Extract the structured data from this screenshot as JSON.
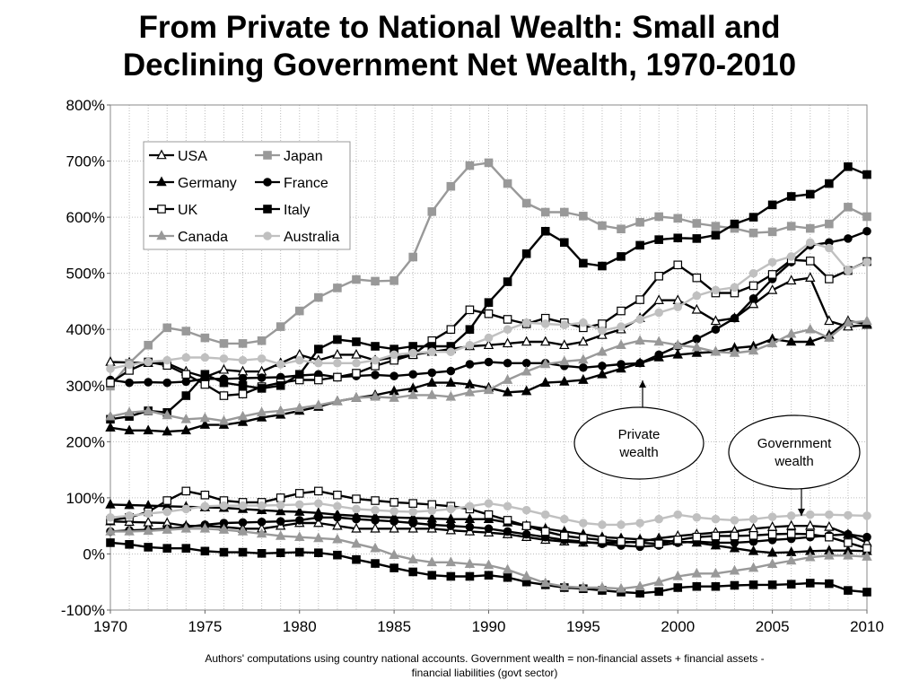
{
  "title_line1": "From Private to National Wealth: Small and",
  "title_line2": "Declining Government Net Wealth, 1970-2010",
  "footnote_line1": "Authors' computations using country national accounts. Government wealth = non-financial assets + financial assets -",
  "footnote_line2": "financial liabilities (govt sector)",
  "annotations": {
    "private": [
      "Private",
      "wealth"
    ],
    "government": [
      "Government",
      "wealth"
    ]
  },
  "chart_data": {
    "type": "line",
    "x": [
      1970,
      1971,
      1972,
      1973,
      1974,
      1975,
      1976,
      1977,
      1978,
      1979,
      1980,
      1981,
      1982,
      1983,
      1984,
      1985,
      1986,
      1987,
      1988,
      1989,
      1990,
      1991,
      1992,
      1993,
      1994,
      1995,
      1996,
      1997,
      1998,
      1999,
      2000,
      2001,
      2002,
      2003,
      2004,
      2005,
      2006,
      2007,
      2008,
      2009,
      2010
    ],
    "xlim": [
      1970,
      2010
    ],
    "ylim": [
      -100,
      800
    ],
    "xticks": [
      1970,
      1975,
      1980,
      1985,
      1990,
      1995,
      2000,
      2005,
      2010
    ],
    "yticks": [
      -100,
      0,
      100,
      200,
      300,
      400,
      500,
      600,
      700,
      800
    ],
    "ytick_labels": [
      "-100%",
      "0%",
      "100%",
      "200%",
      "300%",
      "400%",
      "500%",
      "600%",
      "700%",
      "800%"
    ],
    "grid": true,
    "legend_position": "top-left",
    "series": [
      {
        "name": "USA",
        "marker": "triangle-open",
        "color": "#000000",
        "private": [
          342,
          341,
          340,
          340,
          325,
          315,
          328,
          325,
          325,
          340,
          355,
          345,
          355,
          355,
          345,
          350,
          355,
          360,
          365,
          370,
          372,
          375,
          378,
          378,
          372,
          378,
          390,
          400,
          420,
          452,
          452,
          435,
          415,
          420,
          445,
          470,
          487,
          492,
          415,
          405,
          408
        ],
        "government": [
          58,
          57,
          56,
          55,
          50,
          50,
          48,
          45,
          45,
          50,
          55,
          55,
          50,
          45,
          45,
          45,
          45,
          45,
          42,
          40,
          38,
          35,
          30,
          25,
          22,
          20,
          20,
          20,
          22,
          28,
          32,
          35,
          38,
          40,
          45,
          48,
          50,
          50,
          48,
          35,
          20
        ]
      },
      {
        "name": "Japan",
        "marker": "square",
        "color": "#999999",
        "private": [
          299,
          340,
          372,
          403,
          397,
          385,
          375,
          375,
          380,
          405,
          433,
          457,
          474,
          489,
          486,
          487,
          529,
          610,
          655,
          692,
          697,
          660,
          625,
          609,
          609,
          602,
          585,
          579,
          591,
          601,
          598,
          589,
          584,
          580,
          572,
          574,
          584,
          580,
          588,
          618,
          601
        ]
      },
      {
        "name": "Germany",
        "marker": "triangle",
        "color": "#000000",
        "private": [
          225,
          220,
          220,
          218,
          220,
          230,
          230,
          235,
          243,
          248,
          255,
          262,
          272,
          278,
          283,
          290,
          295,
          305,
          305,
          302,
          296,
          288,
          290,
          305,
          307,
          310,
          320,
          330,
          340,
          350,
          355,
          358,
          360,
          367,
          370,
          383,
          378,
          378,
          390,
          415,
          410
        ],
        "government": [
          88,
          87,
          86,
          85,
          84,
          83,
          82,
          80,
          78,
          76,
          75,
          73,
          70,
          68,
          66,
          65,
          64,
          63,
          62,
          62,
          62,
          56,
          50,
          45,
          40,
          35,
          30,
          28,
          26,
          24,
          22,
          20,
          15,
          10,
          5,
          2,
          3,
          5,
          6,
          6,
          5
        ]
      },
      {
        "name": "France",
        "marker": "circle",
        "color": "#000000",
        "private": [
          310,
          305,
          306,
          305,
          307,
          312,
          312,
          313,
          314,
          315,
          318,
          320,
          315,
          317,
          319,
          317,
          320,
          323,
          326,
          338,
          342,
          340,
          340,
          340,
          335,
          332,
          335,
          338,
          340,
          355,
          370,
          383,
          400,
          420,
          455,
          490,
          520,
          550,
          555,
          562,
          575
        ],
        "government": [
          40,
          42,
          43,
          45,
          48,
          52,
          55,
          56,
          57,
          58,
          60,
          65,
          65,
          62,
          60,
          58,
          55,
          52,
          50,
          48,
          45,
          40,
          35,
          30,
          25,
          22,
          18,
          15,
          13,
          15,
          20,
          22,
          20,
          20,
          22,
          25,
          27,
          30,
          33,
          35,
          30
        ]
      },
      {
        "name": "UK",
        "marker": "square-open",
        "color": "#000000",
        "private": [
          305,
          327,
          342,
          336,
          320,
          302,
          282,
          285,
          298,
          305,
          310,
          310,
          315,
          322,
          335,
          345,
          355,
          380,
          400,
          435,
          428,
          418,
          410,
          420,
          412,
          403,
          410,
          433,
          453,
          495,
          515,
          492,
          465,
          465,
          478,
          498,
          524,
          522,
          490,
          505,
          521
        ],
        "government": [
          60,
          65,
          75,
          95,
          112,
          105,
          95,
          92,
          92,
          100,
          108,
          112,
          105,
          98,
          95,
          92,
          90,
          88,
          85,
          80,
          70,
          60,
          50,
          40,
          32,
          28,
          25,
          22,
          20,
          18,
          25,
          30,
          32,
          32,
          33,
          35,
          36,
          35,
          30,
          20,
          10
        ]
      },
      {
        "name": "Italy",
        "marker": "square",
        "color": "#000000",
        "private": [
          240,
          245,
          255,
          252,
          282,
          320,
          305,
          300,
          295,
          300,
          320,
          365,
          382,
          378,
          370,
          365,
          370,
          370,
          370,
          400,
          448,
          485,
          535,
          575,
          555,
          518,
          513,
          530,
          550,
          560,
          563,
          562,
          568,
          588,
          600,
          622,
          637,
          641,
          660,
          690,
          676
        ],
        "government": [
          20,
          17,
          12,
          10,
          10,
          5,
          3,
          3,
          1,
          2,
          3,
          2,
          -2,
          -10,
          -17,
          -25,
          -32,
          -38,
          -40,
          -40,
          -38,
          -42,
          -50,
          -55,
          -60,
          -62,
          -65,
          -68,
          -70,
          -67,
          -60,
          -58,
          -58,
          -56,
          -55,
          -55,
          -54,
          -52,
          -53,
          -65,
          -68
        ]
      },
      {
        "name": "Canada",
        "marker": "triangle",
        "color": "#999999",
        "private": [
          245,
          252,
          255,
          247,
          240,
          242,
          237,
          245,
          252,
          255,
          260,
          265,
          272,
          278,
          280,
          278,
          283,
          283,
          280,
          288,
          292,
          310,
          325,
          338,
          343,
          346,
          360,
          372,
          380,
          378,
          372,
          368,
          360,
          358,
          362,
          375,
          392,
          400,
          385,
          412,
          415
        ],
        "government": [
          40,
          40,
          41,
          43,
          45,
          45,
          43,
          40,
          36,
          32,
          30,
          28,
          26,
          18,
          10,
          -2,
          -10,
          -15,
          -15,
          -18,
          -20,
          -28,
          -40,
          -52,
          -58,
          -60,
          -60,
          -62,
          -58,
          -50,
          -40,
          -35,
          -35,
          -30,
          -25,
          -18,
          -12,
          -6,
          -3,
          -3,
          -5
        ]
      },
      {
        "name": "Australia",
        "marker": "circle",
        "color": "#c0c0c0",
        "private": [
          330,
          337,
          342,
          345,
          350,
          350,
          348,
          345,
          348,
          338,
          345,
          340,
          340,
          340,
          345,
          355,
          358,
          360,
          360,
          372,
          385,
          400,
          412,
          410,
          408,
          412,
          398,
          405,
          418,
          430,
          440,
          460,
          470,
          475,
          500,
          520,
          530,
          555,
          545,
          505,
          520
        ],
        "government": [
          65,
          68,
          72,
          75,
          80,
          85,
          86,
          86,
          86,
          87,
          88,
          90,
          85,
          80,
          78,
          76,
          75,
          77,
          80,
          85,
          90,
          85,
          78,
          70,
          62,
          55,
          52,
          52,
          55,
          62,
          70,
          65,
          62,
          60,
          62,
          66,
          68,
          70,
          70,
          69,
          68
        ]
      }
    ]
  }
}
